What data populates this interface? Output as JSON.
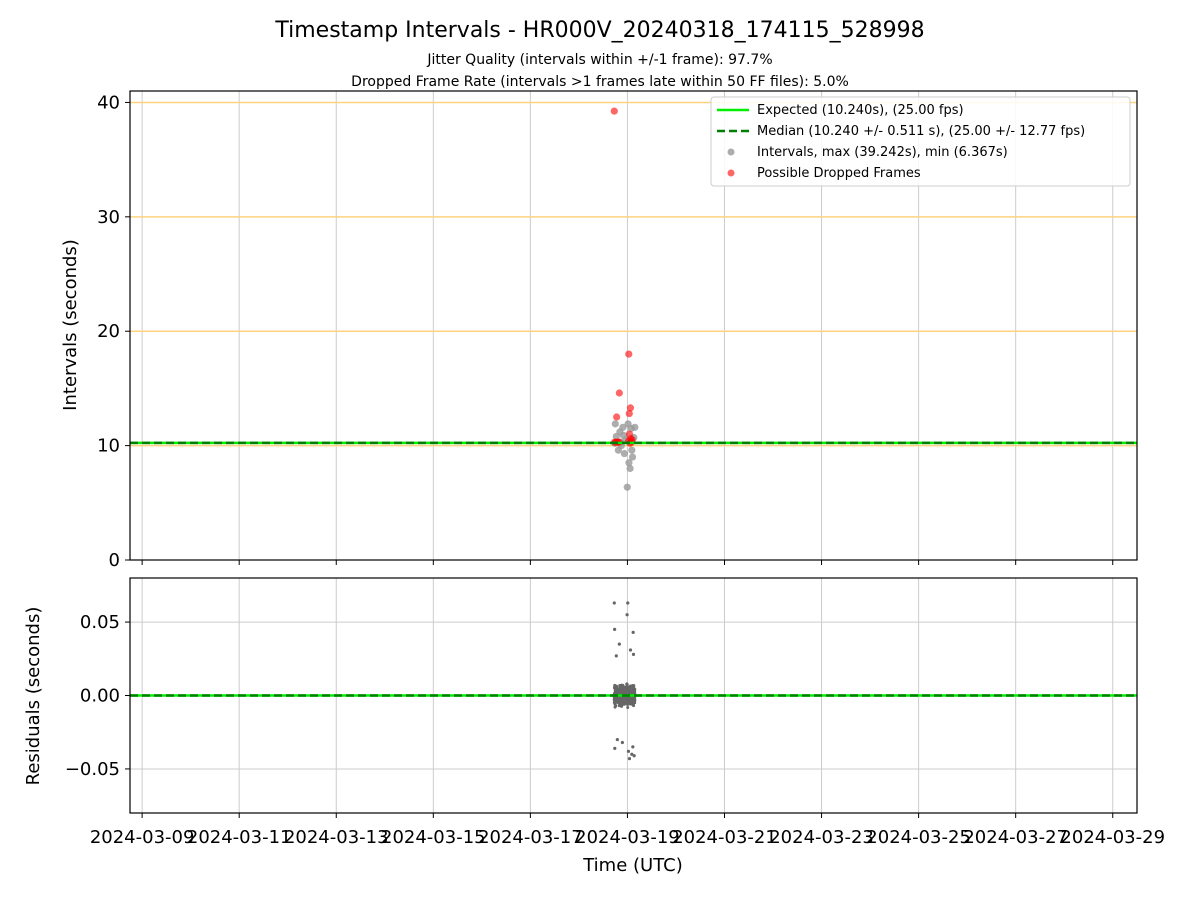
{
  "title": "Timestamp Intervals - HR000V_20240318_174115_528998",
  "subtitle_1": "Jitter Quality (intervals within +/-1 frame): 97.7%",
  "subtitle_2": "Dropped Frame Rate (intervals >1 frames late within 50 FF files): 5.0%",
  "colors": {
    "expected": "#00ee00",
    "median": "#008000",
    "intervals": "#999999",
    "dropped": "#ff0000",
    "residuals": "#666666",
    "hline": "#ffd27f",
    "grid": "#cccccc"
  },
  "chart_data": [
    {
      "type": "scatter",
      "name": "intervals",
      "ylabel": "Intervals (seconds)",
      "ylim": [
        0,
        41
      ],
      "xlim": [
        "2024-03-08T18:00",
        "2024-03-29T12:00"
      ],
      "yticks": [
        0,
        10,
        20,
        30,
        40
      ],
      "yticklabels": [
        "0",
        "10",
        "20",
        "30",
        "40"
      ],
      "grid": true,
      "legend_position": "top-right",
      "horizontal_lines": [
        10,
        20,
        30,
        40
      ],
      "expected_value": 10.24,
      "median_value": 10.24,
      "legend": [
        {
          "label": "Expected (10.240s), (25.00 fps)",
          "kind": "line"
        },
        {
          "label": "Median (10.240 +/- 0.511 s), (25.00 +/- 12.77 fps)",
          "kind": "dashed"
        },
        {
          "label": "Intervals, max (39.242s), min (6.367s)",
          "kind": "gray-dot"
        },
        {
          "label": "Possible Dropped Frames",
          "kind": "red-dot"
        }
      ],
      "series": [
        {
          "name": "Intervals, max (39.242s), min (6.367s)",
          "points": [
            {
              "x": "2024-03-18T17:45",
              "y": 10.2
            },
            {
              "x": "2024-03-18T18:30",
              "y": 10.8
            },
            {
              "x": "2024-03-18T19:30",
              "y": 9.6
            },
            {
              "x": "2024-03-18T20:15",
              "y": 11.2
            },
            {
              "x": "2024-03-18T21:00",
              "y": 10.0
            },
            {
              "x": "2024-03-18T21:45",
              "y": 11.6
            },
            {
              "x": "2024-03-18T22:30",
              "y": 9.3
            },
            {
              "x": "2024-03-18T23:10",
              "y": 10.5
            },
            {
              "x": "2024-03-18T23:55",
              "y": 6.367
            },
            {
              "x": "2024-03-19T00:20",
              "y": 11.9
            },
            {
              "x": "2024-03-19T00:45",
              "y": 8.5
            },
            {
              "x": "2024-03-19T01:20",
              "y": 8.0
            },
            {
              "x": "2024-03-19T01:50",
              "y": 11.5
            },
            {
              "x": "2024-03-19T02:30",
              "y": 9.0
            },
            {
              "x": "2024-03-19T03:10",
              "y": 10.7
            },
            {
              "x": "2024-03-19T03:40",
              "y": 11.6
            },
            {
              "x": "2024-03-18T18:00",
              "y": 11.9
            },
            {
              "x": "2024-03-18T20:40",
              "y": 10.3
            },
            {
              "x": "2024-03-19T02:10",
              "y": 9.6
            },
            {
              "x": "2024-03-18T22:00",
              "y": 10.9
            }
          ]
        },
        {
          "name": "Possible Dropped Frames",
          "points": [
            {
              "x": "2024-03-18T17:30",
              "y": 39.242
            },
            {
              "x": "2024-03-18T20:00",
              "y": 14.6
            },
            {
              "x": "2024-03-19T00:40",
              "y": 18.0
            },
            {
              "x": "2024-03-19T01:30",
              "y": 13.3
            },
            {
              "x": "2024-03-19T00:55",
              "y": 12.8
            },
            {
              "x": "2024-03-18T18:40",
              "y": 12.5
            },
            {
              "x": "2024-03-18T17:40",
              "y": 10.3
            },
            {
              "x": "2024-03-18T18:10",
              "y": 10.3
            },
            {
              "x": "2024-03-18T18:50",
              "y": 10.3
            },
            {
              "x": "2024-03-18T19:20",
              "y": 10.3
            },
            {
              "x": "2024-03-18T19:50",
              "y": 10.3
            },
            {
              "x": "2024-03-19T00:30",
              "y": 10.4
            },
            {
              "x": "2024-03-19T01:00",
              "y": 11.0
            },
            {
              "x": "2024-03-19T01:15",
              "y": 10.2
            },
            {
              "x": "2024-03-19T01:40",
              "y": 10.6
            },
            {
              "x": "2024-03-19T02:00",
              "y": 10.3
            },
            {
              "x": "2024-03-19T02:20",
              "y": 10.5
            }
          ]
        }
      ]
    },
    {
      "type": "scatter",
      "name": "residuals",
      "xlabel": "Time (UTC)",
      "ylabel": "Residuals (seconds)",
      "ylim": [
        -0.08,
        0.08
      ],
      "xlim": [
        "2024-03-08T18:00",
        "2024-03-29T12:00"
      ],
      "yticks": [
        0.05,
        0.0,
        -0.05
      ],
      "yticklabels": [
        "0.05",
        "0.00",
        "−0.05"
      ],
      "xticks": [
        "2024-03-09",
        "2024-03-11",
        "2024-03-13",
        "2024-03-15",
        "2024-03-17",
        "2024-03-19",
        "2024-03-21",
        "2024-03-23",
        "2024-03-25",
        "2024-03-27",
        "2024-03-29"
      ],
      "xticklabels": [
        "2024-03-09",
        "2024-03-11",
        "2024-03-13",
        "2024-03-15",
        "2024-03-17",
        "2024-03-19",
        "2024-03-21",
        "2024-03-23",
        "2024-03-25",
        "2024-03-27",
        "2024-03-29"
      ],
      "grid": true,
      "zero_line": 0.0,
      "series": [
        {
          "name": "residuals",
          "x_range": [
            "2024-03-18T17:30",
            "2024-03-19T03:40"
          ],
          "points": [
            {
              "x": "2024-03-18T17:30",
              "y": 0.063
            },
            {
              "x": "2024-03-19T00:10",
              "y": 0.063
            },
            {
              "x": "2024-03-18T23:50",
              "y": 0.055
            },
            {
              "x": "2024-03-18T17:40",
              "y": 0.045
            },
            {
              "x": "2024-03-19T02:50",
              "y": 0.043
            },
            {
              "x": "2024-03-18T20:00",
              "y": 0.035
            },
            {
              "x": "2024-03-19T01:30",
              "y": 0.031
            },
            {
              "x": "2024-03-18T18:30",
              "y": 0.027
            },
            {
              "x": "2024-03-19T03:00",
              "y": 0.028
            },
            {
              "x": "2024-03-18T17:45",
              "y": -0.036
            },
            {
              "x": "2024-03-18T21:30",
              "y": -0.032
            },
            {
              "x": "2024-03-19T00:30",
              "y": -0.038
            },
            {
              "x": "2024-03-19T01:00",
              "y": -0.043
            },
            {
              "x": "2024-03-19T02:10",
              "y": -0.04
            },
            {
              "x": "2024-03-19T03:20",
              "y": -0.041
            },
            {
              "x": "2024-03-18T19:00",
              "y": -0.03
            },
            {
              "x": "2024-03-19T02:40",
              "y": -0.035
            }
          ]
        }
      ]
    }
  ]
}
